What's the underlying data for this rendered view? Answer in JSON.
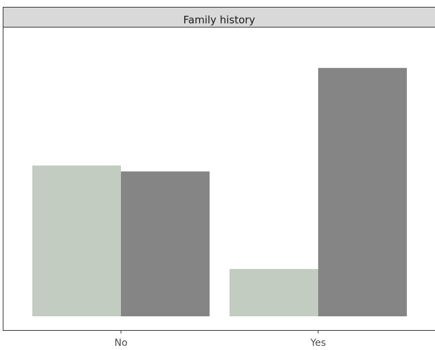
{
  "chart_data": {
    "type": "bar",
    "title": "",
    "facet_label": "Family history",
    "categories": [
      "No",
      "Yes"
    ],
    "series": [
      {
        "color": "#c2ccc1",
        "values": [
          0.51,
          0.16
        ]
      },
      {
        "color": "#858585",
        "values": [
          0.49,
          0.84
        ]
      }
    ],
    "ylim": [
      0,
      1.0
    ],
    "xlabel": "",
    "ylabel": "",
    "grid": false,
    "legend": "none"
  },
  "colors": {
    "strip_fill": "#d9d9d9",
    "strip_border": "#333333",
    "axis_line": "#333333"
  }
}
